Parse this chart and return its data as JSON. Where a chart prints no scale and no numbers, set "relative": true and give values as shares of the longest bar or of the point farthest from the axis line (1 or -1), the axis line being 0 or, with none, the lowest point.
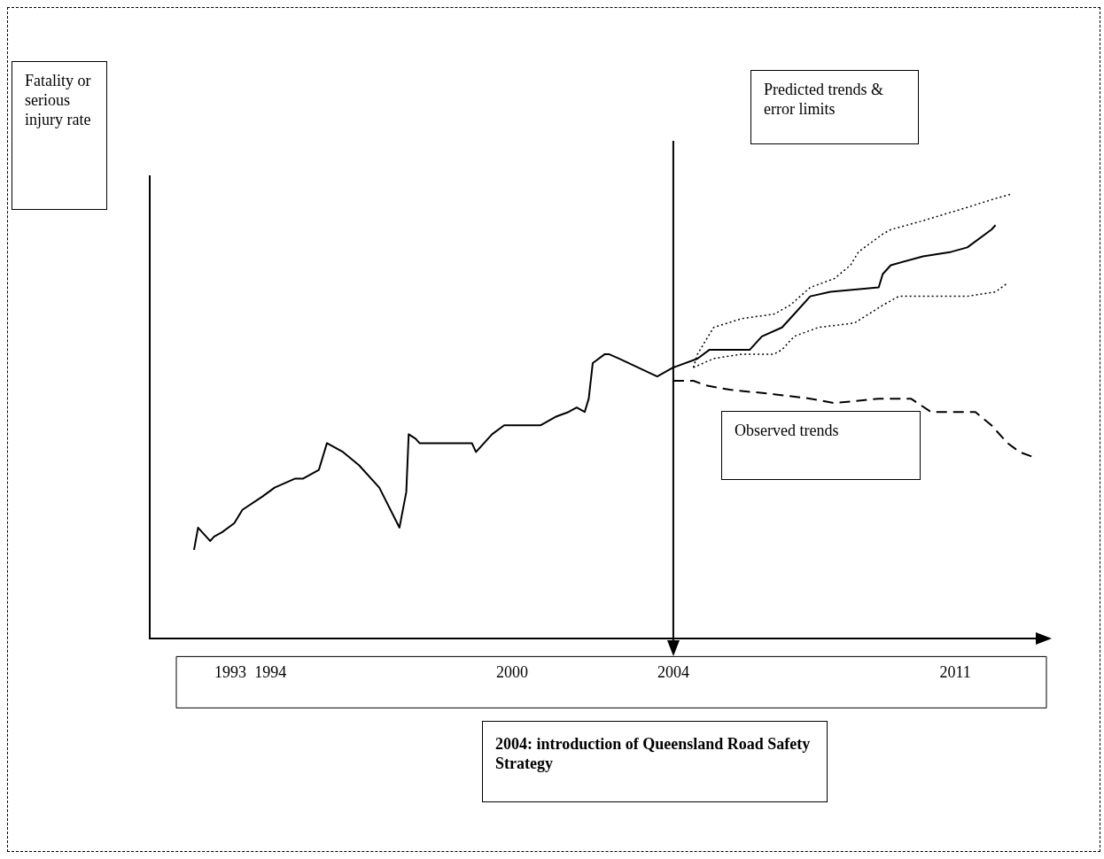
{
  "chart_data": {
    "type": "line",
    "relative": true,
    "annotations": [
      "Fatality or serious injury rate",
      "Predicted trends & error limits",
      "Observed trends"
    ],
    "xlim": [
      1991,
      2013
    ],
    "xticks": [
      1993,
      1994,
      2000,
      2004,
      2011
    ],
    "ref_lines": [
      {
        "axis": "x",
        "value": 2004,
        "label": "2004: introduction of Queensland Road Safety Strategy"
      }
    ],
    "series": [
      {
        "color": "#000000",
        "line_style": "solid",
        "x": [
          1992.1,
          1992.2,
          1992.5,
          1992.6,
          1992.8,
          1993.1,
          1993.3,
          1993.8,
          1994.1,
          1994.6,
          1994.8,
          1995.2,
          1995.4,
          1995.8,
          1996.2,
          1996.7,
          1997.2,
          1997.37,
          1997.43,
          1997.6,
          1997.7,
          1998.2,
          1999.0,
          1999.1,
          1999.5,
          1999.8,
          2000.3,
          2000.7,
          2001.1,
          2001.4,
          2001.6,
          2001.8,
          2001.9,
          2002.0,
          2002.3,
          2002.4,
          2002.65,
          2003.6,
          2004.0,
          2004.6,
          2004.9,
          2005.9,
          2006.2,
          2006.7,
          2007.0,
          2007.4,
          2007.9,
          2009.1,
          2009.2,
          2009.4,
          2010.2,
          2010.9,
          2011.3,
          2011.9,
          2012.0
        ],
        "values": [
          0.2,
          0.25,
          0.22,
          0.23,
          0.24,
          0.26,
          0.29,
          0.32,
          0.34,
          0.36,
          0.36,
          0.38,
          0.44,
          0.42,
          0.39,
          0.34,
          0.25,
          0.33,
          0.46,
          0.45,
          0.44,
          0.44,
          0.44,
          0.42,
          0.46,
          0.48,
          0.48,
          0.48,
          0.5,
          0.51,
          0.52,
          0.51,
          0.54,
          0.62,
          0.64,
          0.64,
          0.63,
          0.59,
          0.61,
          0.63,
          0.65,
          0.65,
          0.68,
          0.7,
          0.73,
          0.77,
          0.78,
          0.79,
          0.82,
          0.84,
          0.86,
          0.87,
          0.88,
          0.92,
          0.93
        ]
      },
      {
        "color": "#000000",
        "line_style": "dotted",
        "x": [
          2004.5,
          2004.6,
          2005.0,
          2005.7,
          2006.5,
          2006.9,
          2007.4,
          2008.0,
          2008.4,
          2008.6,
          2009.2,
          2009.4,
          2010.2,
          2011.3,
          2012.0,
          2012.4
        ],
        "values": [
          0.61,
          0.64,
          0.7,
          0.72,
          0.73,
          0.75,
          0.79,
          0.81,
          0.84,
          0.87,
          0.91,
          0.92,
          0.94,
          0.97,
          0.99,
          1.0
        ]
      },
      {
        "color": "#000000",
        "line_style": "dotted",
        "x": [
          2004.5,
          2005.0,
          2005.7,
          2006.5,
          2006.7,
          2007.0,
          2007.6,
          2008.5,
          2009.2,
          2009.6,
          2010.4,
          2011.3,
          2012.0,
          2012.3
        ],
        "values": [
          0.61,
          0.63,
          0.64,
          0.64,
          0.65,
          0.68,
          0.7,
          0.71,
          0.75,
          0.77,
          0.77,
          0.77,
          0.78,
          0.8
        ]
      },
      {
        "color": "#000000",
        "line_style": "dashed",
        "x": [
          2004.0,
          2004.5,
          2004.8,
          2005.4,
          2006.5,
          2007.4,
          2008.0,
          2009.1,
          2009.5,
          2009.9,
          2010.4,
          2011.5,
          2011.9,
          2012.3,
          2012.6,
          2012.9
        ],
        "values": [
          0.58,
          0.58,
          0.57,
          0.56,
          0.55,
          0.54,
          0.53,
          0.54,
          0.54,
          0.54,
          0.51,
          0.51,
          0.48,
          0.44,
          0.42,
          0.41
        ]
      }
    ]
  }
}
